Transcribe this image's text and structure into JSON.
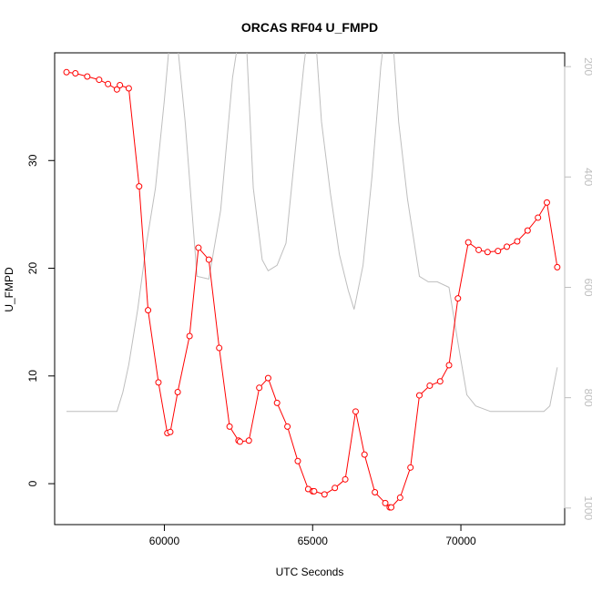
{
  "chart_data": {
    "type": "line",
    "title": "ORCAS RF04 U_FMPD",
    "xlabel": "UTC Seconds",
    "ylabel": "U_FMPD",
    "xlim": [
      56300,
      73500
    ],
    "ylim": [
      -3.8,
      40.0
    ],
    "xticks": [
      60000,
      65000,
      70000
    ],
    "xtick_labels": [
      "60000",
      "65000",
      "70000"
    ],
    "yticks": [
      0,
      10,
      20,
      30
    ],
    "ytick_labels": [
      "0",
      "10",
      "20",
      "30"
    ],
    "y2_reversed": true,
    "y2lim": [
      1030,
      175
    ],
    "y2ticks": [
      200,
      400,
      600,
      800,
      1000
    ],
    "y2tick_labels": [
      "200",
      "400",
      "600",
      "800",
      "1000"
    ],
    "series": [
      {
        "color": "#ff0000",
        "style": "line+circles",
        "x": [
          56700,
          57000,
          57400,
          57800,
          58100,
          58400,
          58500,
          58800,
          59150,
          59450,
          59800,
          60100,
          60200,
          60450,
          60850,
          61150,
          61500,
          61850,
          62200,
          62500,
          62550,
          62850,
          63200,
          63500,
          63800,
          64150,
          64500,
          64850,
          65000,
          65050,
          65400,
          65750,
          66100,
          66450,
          66750,
          67100,
          67450,
          67600,
          67650,
          67950,
          68300,
          68600,
          68950,
          69300,
          69600,
          69900,
          70250,
          70600,
          70900,
          71250,
          71550,
          71900,
          72250,
          72600,
          72900,
          73250
        ],
        "y": [
          38.2,
          38.1,
          37.8,
          37.5,
          37.1,
          36.6,
          37.0,
          36.7,
          27.6,
          16.1,
          9.4,
          4.7,
          4.8,
          8.5,
          13.7,
          21.9,
          20.8,
          12.6,
          5.3,
          4.0,
          3.9,
          4.0,
          8.9,
          9.8,
          7.5,
          5.3,
          2.1,
          -0.5,
          -0.7,
          -0.7,
          -1.0,
          -0.4,
          0.4,
          6.7,
          2.7,
          -0.8,
          -1.8,
          -2.2,
          -2.2,
          -1.3,
          1.5,
          8.2,
          9.1,
          9.5,
          11.0,
          17.2,
          22.4,
          21.7,
          21.5,
          21.6,
          22.0,
          22.5,
          23.5,
          24.7,
          26.1,
          20.1
        ]
      },
      {
        "color": "#bebebe",
        "style": "line",
        "axis": "right",
        "x": [
          56700,
          57000,
          57500,
          58000,
          58400,
          58600,
          58800,
          59100,
          59400,
          59700,
          60000,
          60300,
          60700,
          61100,
          61500,
          61900,
          62300,
          62700,
          63000,
          63300,
          63500,
          63800,
          64100,
          64400,
          64700,
          65000,
          65300,
          65600,
          65900,
          66200,
          66400,
          66700,
          67000,
          67300,
          67600,
          67900,
          68200,
          68600,
          68900,
          69200,
          69600,
          69900,
          70200,
          70500,
          71000,
          71500,
          72000,
          72500,
          72800,
          73000,
          73250
        ],
        "y": [
          825,
          825,
          825,
          825,
          825,
          790,
          740,
          640,
          520,
          420,
          260,
          80,
          300,
          580,
          585,
          460,
          220,
          80,
          420,
          550,
          570,
          560,
          520,
          360,
          200,
          70,
          300,
          430,
          540,
          605,
          640,
          560,
          400,
          200,
          70,
          300,
          440,
          580,
          590,
          590,
          600,
          700,
          795,
          815,
          825,
          825,
          825,
          825,
          825,
          815,
          745
        ]
      }
    ]
  }
}
